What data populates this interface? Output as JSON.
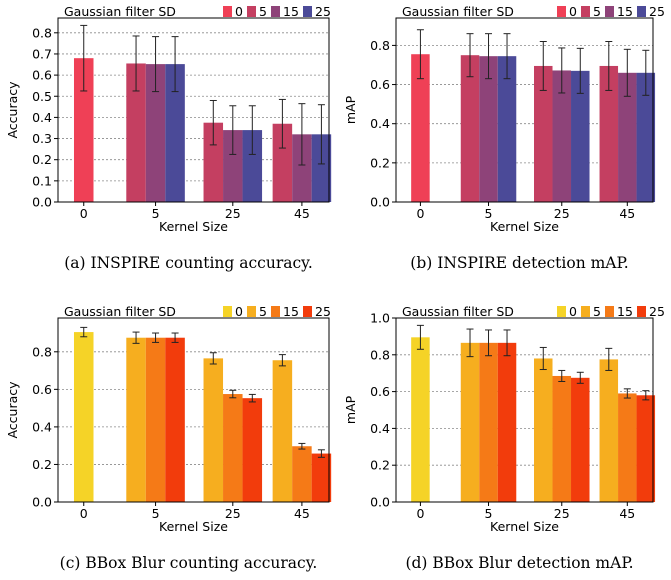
{
  "chart_data": [
    {
      "type": "bar",
      "id": "a",
      "legend_title": "Gaussian filter SD",
      "legend_placement": "top",
      "categories": [
        "0",
        "5",
        "25",
        "45"
      ],
      "xlabel": "Kernel Size",
      "ylabel": "Accuracy",
      "ylim": [
        0,
        0.87
      ],
      "yticks": [
        "0.0",
        "0.1",
        "0.2",
        "0.3",
        "0.4",
        "0.5",
        "0.6",
        "0.7",
        "0.8"
      ],
      "grid": true,
      "colors": [
        "#ef4056",
        "#c43f61",
        "#8e4379",
        "#4b4a98"
      ],
      "series": [
        {
          "name": "0",
          "values": [
            0.68,
            null,
            null,
            null
          ],
          "errors": [
            0.155,
            null,
            null,
            null
          ]
        },
        {
          "name": "5",
          "values": [
            null,
            0.655,
            0.375,
            0.37
          ],
          "errors": [
            null,
            0.13,
            0.105,
            0.115
          ]
        },
        {
          "name": "15",
          "values": [
            null,
            0.652,
            0.34,
            0.32
          ],
          "errors": [
            null,
            0.13,
            0.115,
            0.145
          ]
        },
        {
          "name": "25",
          "values": [
            null,
            0.652,
            0.34,
            0.32
          ],
          "errors": [
            null,
            0.13,
            0.115,
            0.14
          ]
        }
      ],
      "caption": "(a) INSPIRE counting accuracy."
    },
    {
      "type": "bar",
      "id": "b",
      "legend_title": "Gaussian filter SD",
      "legend_placement": "top",
      "categories": [
        "0",
        "5",
        "25",
        "45"
      ],
      "xlabel": "Kernel Size",
      "ylabel": "mAP",
      "ylim": [
        0,
        0.94
      ],
      "yticks": [
        "0.0",
        "0.2",
        "0.4",
        "0.6",
        "0.8"
      ],
      "grid": true,
      "colors": [
        "#ef4056",
        "#c43f61",
        "#8e4379",
        "#4b4a98"
      ],
      "series": [
        {
          "name": "0",
          "values": [
            0.755,
            null,
            null,
            null
          ],
          "errors": [
            0.125,
            null,
            null,
            null
          ]
        },
        {
          "name": "5",
          "values": [
            null,
            0.75,
            0.695,
            0.695
          ],
          "errors": [
            null,
            0.11,
            0.125,
            0.125
          ]
        },
        {
          "name": "15",
          "values": [
            null,
            0.745,
            0.672,
            0.66
          ],
          "errors": [
            null,
            0.115,
            0.115,
            0.12
          ]
        },
        {
          "name": "25",
          "values": [
            null,
            0.745,
            0.67,
            0.66
          ],
          "errors": [
            null,
            0.115,
            0.115,
            0.115
          ]
        }
      ],
      "caption": "(b) INSPIRE detection mAP."
    },
    {
      "type": "bar",
      "id": "c",
      "legend_title": "Gaussian filter SD",
      "legend_placement": "top",
      "categories": [
        "0",
        "5",
        "25",
        "45"
      ],
      "xlabel": "Kernel Size",
      "ylabel": "Accuracy",
      "ylim": [
        0,
        0.98
      ],
      "yticks": [
        "0.0",
        "0.2",
        "0.4",
        "0.6",
        "0.8"
      ],
      "grid": true,
      "colors": [
        "#f5d327",
        "#f6ae1f",
        "#f57a17",
        "#f23c0c"
      ],
      "series": [
        {
          "name": "0",
          "values": [
            0.905,
            null,
            null,
            null
          ],
          "errors": [
            0.025,
            null,
            null,
            null
          ]
        },
        {
          "name": "5",
          "values": [
            null,
            0.875,
            0.765,
            0.755
          ],
          "errors": [
            null,
            0.03,
            0.03,
            0.03
          ]
        },
        {
          "name": "15",
          "values": [
            null,
            0.875,
            0.575,
            0.297
          ],
          "errors": [
            null,
            0.025,
            0.02,
            0.015
          ]
        },
        {
          "name": "25",
          "values": [
            null,
            0.875,
            0.553,
            0.258
          ],
          "errors": [
            null,
            0.025,
            0.02,
            0.02
          ]
        }
      ],
      "caption": "(c) BBox Blur counting accuracy."
    },
    {
      "type": "bar",
      "id": "d",
      "legend_title": "Gaussian filter SD",
      "legend_placement": "top",
      "categories": [
        "0",
        "5",
        "25",
        "45"
      ],
      "xlabel": "Kernel Size",
      "ylabel": "mAP",
      "ylim": [
        0,
        1.0
      ],
      "yticks": [
        "0.0",
        "0.2",
        "0.4",
        "0.6",
        "0.8",
        "1.0"
      ],
      "grid": true,
      "colors": [
        "#f5d327",
        "#f6ae1f",
        "#f57a17",
        "#f23c0c"
      ],
      "series": [
        {
          "name": "0",
          "values": [
            0.895,
            null,
            null,
            null
          ],
          "errors": [
            0.065,
            null,
            null,
            null
          ]
        },
        {
          "name": "5",
          "values": [
            null,
            0.865,
            0.78,
            0.775
          ],
          "errors": [
            null,
            0.075,
            0.06,
            0.06
          ]
        },
        {
          "name": "15",
          "values": [
            null,
            0.865,
            0.685,
            0.59
          ],
          "errors": [
            null,
            0.07,
            0.03,
            0.025
          ]
        },
        {
          "name": "25",
          "values": [
            null,
            0.865,
            0.675,
            0.58
          ],
          "errors": [
            null,
            0.07,
            0.03,
            0.025
          ]
        }
      ],
      "caption": "(d) BBox Blur detection mAP."
    }
  ]
}
